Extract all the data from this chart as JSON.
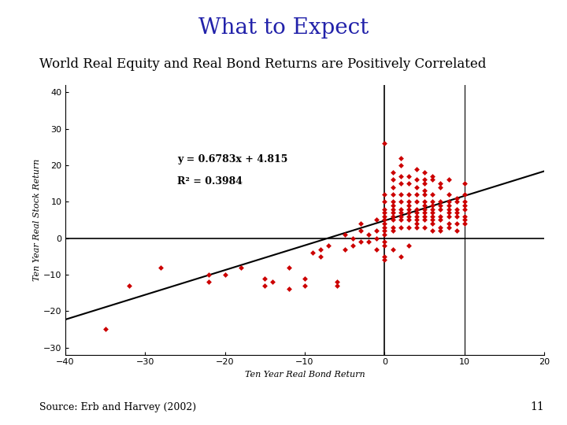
{
  "title": "What to Expect",
  "title_color": "#2222AA",
  "subtitle": "World Real Equity and Real Bond Returns are Positively Correlated",
  "xlabel": "Ten Year Real Bond Return",
  "ylabel": "Ten Year Real Stock Return",
  "source": "Source: Erb and Harvey (2002)",
  "page_num": "11",
  "equation": "y = 0.6783x + 4.815",
  "r_squared": "R² = 0.3984",
  "slope": 0.6783,
  "intercept": 4.815,
  "xlim": [
    -40,
    20
  ],
  "ylim": [
    -32,
    42
  ],
  "xticks": [
    -40,
    -30,
    -20,
    -10,
    0,
    10,
    20
  ],
  "yticks": [
    -30,
    -20,
    -10,
    0,
    10,
    20,
    30,
    40
  ],
  "scatter_color": "#CC0000",
  "scatter_points": [
    [
      -35,
      -25
    ],
    [
      -32,
      -13
    ],
    [
      -28,
      -8
    ],
    [
      -22,
      -10
    ],
    [
      -22,
      -12
    ],
    [
      -20,
      -10
    ],
    [
      -18,
      -8
    ],
    [
      -15,
      -13
    ],
    [
      -15,
      -11
    ],
    [
      -14,
      -12
    ],
    [
      -12,
      -14
    ],
    [
      -12,
      -8
    ],
    [
      -10,
      -13
    ],
    [
      -10,
      -11
    ],
    [
      -9,
      -4
    ],
    [
      -8,
      -3
    ],
    [
      -8,
      -5
    ],
    [
      -7,
      -2
    ],
    [
      -6,
      -12
    ],
    [
      -5,
      -3
    ],
    [
      -5,
      1
    ],
    [
      -4,
      -2
    ],
    [
      -4,
      0
    ],
    [
      -3,
      2
    ],
    [
      -3,
      -1
    ],
    [
      -3,
      4
    ],
    [
      -2,
      -1
    ],
    [
      -2,
      1
    ],
    [
      -1,
      -3
    ],
    [
      -1,
      2
    ],
    [
      -1,
      0
    ],
    [
      -6,
      -13
    ],
    [
      0,
      3
    ],
    [
      0,
      5
    ],
    [
      0,
      2
    ],
    [
      0,
      -2
    ],
    [
      0,
      8
    ],
    [
      0,
      6
    ],
    [
      0,
      10
    ],
    [
      0,
      12
    ],
    [
      0,
      -5
    ],
    [
      0,
      1
    ],
    [
      0,
      -1
    ],
    [
      0,
      4
    ],
    [
      1,
      5
    ],
    [
      1,
      8
    ],
    [
      1,
      6
    ],
    [
      1,
      2
    ],
    [
      1,
      3
    ],
    [
      1,
      10
    ],
    [
      1,
      14
    ],
    [
      1,
      12
    ],
    [
      1,
      18
    ],
    [
      2,
      5
    ],
    [
      2,
      8
    ],
    [
      2,
      10
    ],
    [
      2,
      7
    ],
    [
      2,
      15
    ],
    [
      2,
      17
    ],
    [
      3,
      5
    ],
    [
      3,
      8
    ],
    [
      3,
      12
    ],
    [
      3,
      6
    ],
    [
      3,
      10
    ],
    [
      3,
      7
    ],
    [
      4,
      5
    ],
    [
      4,
      8
    ],
    [
      4,
      6
    ],
    [
      4,
      10
    ],
    [
      4,
      12
    ],
    [
      4,
      3
    ],
    [
      4,
      7
    ],
    [
      5,
      8
    ],
    [
      5,
      5
    ],
    [
      5,
      10
    ],
    [
      5,
      12
    ],
    [
      5,
      6
    ],
    [
      5,
      9
    ],
    [
      5,
      15
    ],
    [
      6,
      7
    ],
    [
      6,
      5
    ],
    [
      6,
      10
    ],
    [
      6,
      8
    ],
    [
      6,
      6
    ],
    [
      6,
      12
    ],
    [
      7,
      8
    ],
    [
      7,
      10
    ],
    [
      7,
      6
    ],
    [
      7,
      5
    ],
    [
      7,
      15
    ],
    [
      8,
      8
    ],
    [
      8,
      6
    ],
    [
      8,
      10
    ],
    [
      8,
      12
    ],
    [
      9,
      7
    ],
    [
      9,
      10
    ],
    [
      9,
      6
    ],
    [
      10,
      8
    ],
    [
      10,
      10
    ],
    [
      10,
      6
    ],
    [
      10,
      15
    ],
    [
      10,
      5
    ],
    [
      10,
      12
    ],
    [
      0,
      26
    ],
    [
      2,
      20
    ],
    [
      5,
      18
    ],
    [
      1,
      16
    ],
    [
      3,
      15
    ],
    [
      6,
      16
    ],
    [
      7,
      14
    ],
    [
      8,
      9
    ],
    [
      9,
      8
    ],
    [
      10,
      9
    ],
    [
      2,
      12
    ],
    [
      3,
      17
    ],
    [
      4,
      16
    ],
    [
      5,
      13
    ],
    [
      6,
      4
    ],
    [
      7,
      2
    ],
    [
      8,
      4
    ],
    [
      9,
      4
    ],
    [
      0,
      -6
    ],
    [
      1,
      -3
    ],
    [
      2,
      -5
    ],
    [
      3,
      -2
    ],
    [
      2,
      3
    ],
    [
      -1,
      5
    ],
    [
      4,
      4
    ],
    [
      5,
      3
    ],
    [
      6,
      2
    ],
    [
      7,
      3
    ],
    [
      8,
      3
    ],
    [
      2,
      22
    ],
    [
      4,
      19
    ],
    [
      6,
      17
    ],
    [
      8,
      16
    ],
    [
      9,
      11
    ],
    [
      5,
      7
    ],
    [
      3,
      3
    ],
    [
      1,
      7
    ],
    [
      0,
      7
    ],
    [
      2,
      6
    ],
    [
      4,
      14
    ],
    [
      6,
      9
    ],
    [
      8,
      7
    ],
    [
      10,
      4
    ],
    [
      7,
      9
    ],
    [
      9,
      2
    ],
    [
      5,
      16
    ],
    [
      3,
      9
    ],
    [
      1,
      9
    ]
  ]
}
